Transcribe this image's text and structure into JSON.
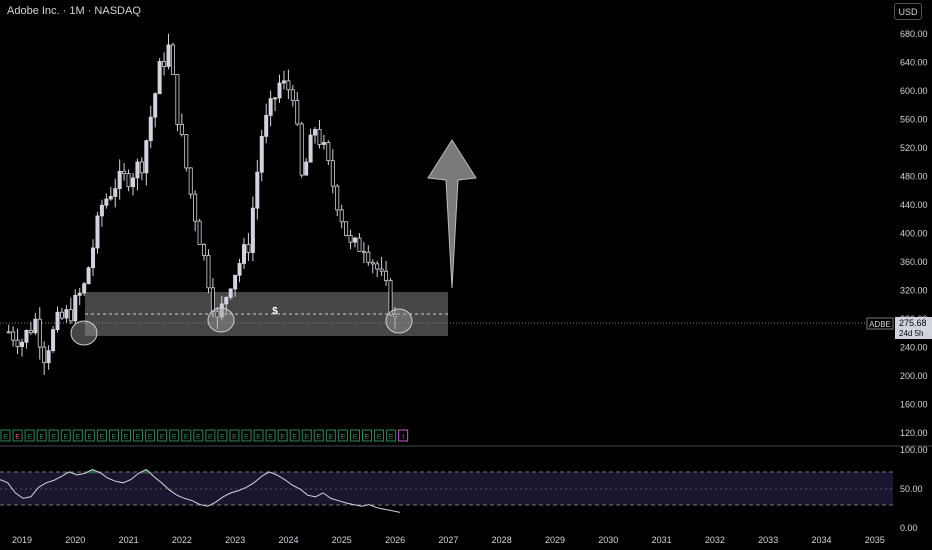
{
  "header": {
    "title": "Adobe Inc. · 1M · NASDAQ",
    "currency": "USD"
  },
  "price_axis": {
    "labels": [
      "680.00",
      "640.00",
      "600.00",
      "560.00",
      "520.00",
      "480.00",
      "440.00",
      "400.00",
      "360.00",
      "320.00",
      "280.00",
      "240.00",
      "200.00",
      "160.00",
      "120.00"
    ]
  },
  "oscillator_axis": {
    "labels": [
      "100.00",
      "50.00",
      "0.00"
    ]
  },
  "time_axis": {
    "labels": [
      "2019",
      "2020",
      "2021",
      "2022",
      "2023",
      "2024",
      "2025",
      "2026",
      "2027",
      "2028",
      "2029",
      "2030",
      "2031",
      "2032",
      "2033",
      "2034",
      "2035"
    ]
  },
  "last_price": {
    "ticker": "ADBE",
    "price": "275.68",
    "countdown": "24d 5h",
    "value": 275.68
  },
  "zone": {
    "label": "$",
    "low": 258,
    "high": 320,
    "mid": 291
  },
  "earnings_marker": "E",
  "current_event_marker": "I",
  "colors": {
    "candle": "#d1d4dc",
    "zone": "#5d5d5d",
    "arrow": "#808080",
    "bg": "#000000"
  },
  "chart_data": [
    {
      "type": "candlestick",
      "title": "Adobe Inc. · 1M · NASDAQ",
      "xlabel": "",
      "ylabel": "",
      "ylim": [
        100,
        700
      ],
      "xlim": [
        "2018-10",
        "2035-06"
      ],
      "x_ticks": [
        "2019",
        "2020",
        "2021",
        "2022",
        "2023",
        "2024",
        "2025",
        "2026",
        "2027",
        "2028",
        "2029",
        "2030",
        "2031",
        "2032",
        "2033",
        "2034",
        "2035"
      ],
      "close_path": [
        [
          "2018-10",
          262
        ],
        [
          "2019-01",
          250
        ],
        [
          "2019-04",
          278
        ],
        [
          "2019-06",
          230
        ],
        [
          "2019-09",
          275
        ],
        [
          "2019-12",
          290
        ],
        [
          "2020-03",
          325
        ],
        [
          "2020-07",
          440
        ],
        [
          "2020-10",
          470
        ],
        [
          "2021-01",
          480
        ],
        [
          "2021-04",
          500
        ],
        [
          "2021-08",
          630
        ],
        [
          "2021-10",
          660
        ],
        [
          "2021-12",
          565
        ],
        [
          "2022-03",
          455
        ],
        [
          "2022-06",
          365
        ],
        [
          "2022-09",
          275
        ],
        [
          "2022-12",
          335
        ],
        [
          "2023-04",
          385
        ],
        [
          "2023-07",
          540
        ],
        [
          "2023-11",
          610
        ],
        [
          "2024-02",
          600
        ],
        [
          "2024-04",
          475
        ],
        [
          "2024-07",
          550
        ],
        [
          "2024-09",
          515
        ],
        [
          "2024-12",
          445
        ],
        [
          "2025-03",
          380
        ],
        [
          "2025-06",
          385
        ],
        [
          "2025-09",
          350
        ],
        [
          "2025-11",
          320
        ],
        [
          "2026-01",
          275.68
        ]
      ],
      "support_zone": [
        258,
        320
      ],
      "projection_arrow": {
        "from": 340,
        "to": 520
      }
    },
    {
      "type": "line",
      "name": "oscillator",
      "ylim": [
        0,
        100
      ],
      "levels": [
        70,
        50,
        30
      ],
      "values": [
        62,
        58,
        45,
        38,
        40,
        52,
        58,
        61,
        66,
        72,
        68,
        70,
        75,
        71,
        64,
        60,
        58,
        62,
        70,
        75,
        66,
        58,
        49,
        42,
        38,
        35,
        30,
        28,
        33,
        40,
        45,
        48,
        52,
        58,
        66,
        72,
        68,
        62,
        55,
        50,
        42,
        40,
        45,
        38,
        35,
        32,
        30,
        28,
        30,
        26,
        24,
        22,
        20
      ]
    }
  ]
}
